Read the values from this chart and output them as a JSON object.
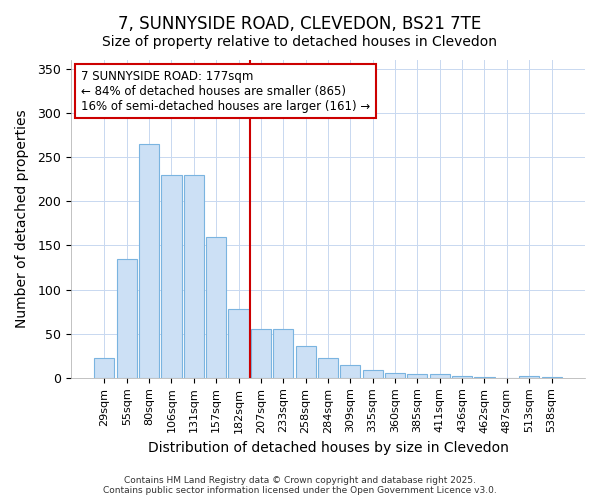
{
  "title": "7, SUNNYSIDE ROAD, CLEVEDON, BS21 7TE",
  "subtitle": "Size of property relative to detached houses in Clevedon",
  "xlabel": "Distribution of detached houses by size in Clevedon",
  "ylabel": "Number of detached properties",
  "categories": [
    "29sqm",
    "55sqm",
    "80sqm",
    "106sqm",
    "131sqm",
    "157sqm",
    "182sqm",
    "207sqm",
    "233sqm",
    "258sqm",
    "284sqm",
    "309sqm",
    "335sqm",
    "360sqm",
    "385sqm",
    "411sqm",
    "436sqm",
    "462sqm",
    "487sqm",
    "513sqm",
    "538sqm"
  ],
  "values": [
    22,
    135,
    265,
    230,
    230,
    159,
    78,
    55,
    55,
    36,
    22,
    14,
    9,
    5,
    4,
    4,
    2,
    1,
    0,
    2,
    1
  ],
  "bar_color": "#cce0f5",
  "bar_edge_color": "#7ab4e0",
  "vline_x": 6.5,
  "vline_color": "#cc0000",
  "annotation_text": "7 SUNNYSIDE ROAD: 177sqm\n← 84% of detached houses are smaller (865)\n16% of semi-detached houses are larger (161) →",
  "annotation_box_color": "#ffffff",
  "annotation_box_edge": "#cc0000",
  "ylim": [
    0,
    360
  ],
  "yticks": [
    0,
    50,
    100,
    150,
    200,
    250,
    300,
    350
  ],
  "title_fontsize": 12,
  "subtitle_fontsize": 10,
  "axis_label_fontsize": 10,
  "tick_fontsize": 9,
  "footer_text": "Contains HM Land Registry data © Crown copyright and database right 2025.\nContains public sector information licensed under the Open Government Licence v3.0.",
  "background_color": "#ffffff",
  "plot_bg_color": "#ffffff",
  "grid_color": "#c8d8f0"
}
